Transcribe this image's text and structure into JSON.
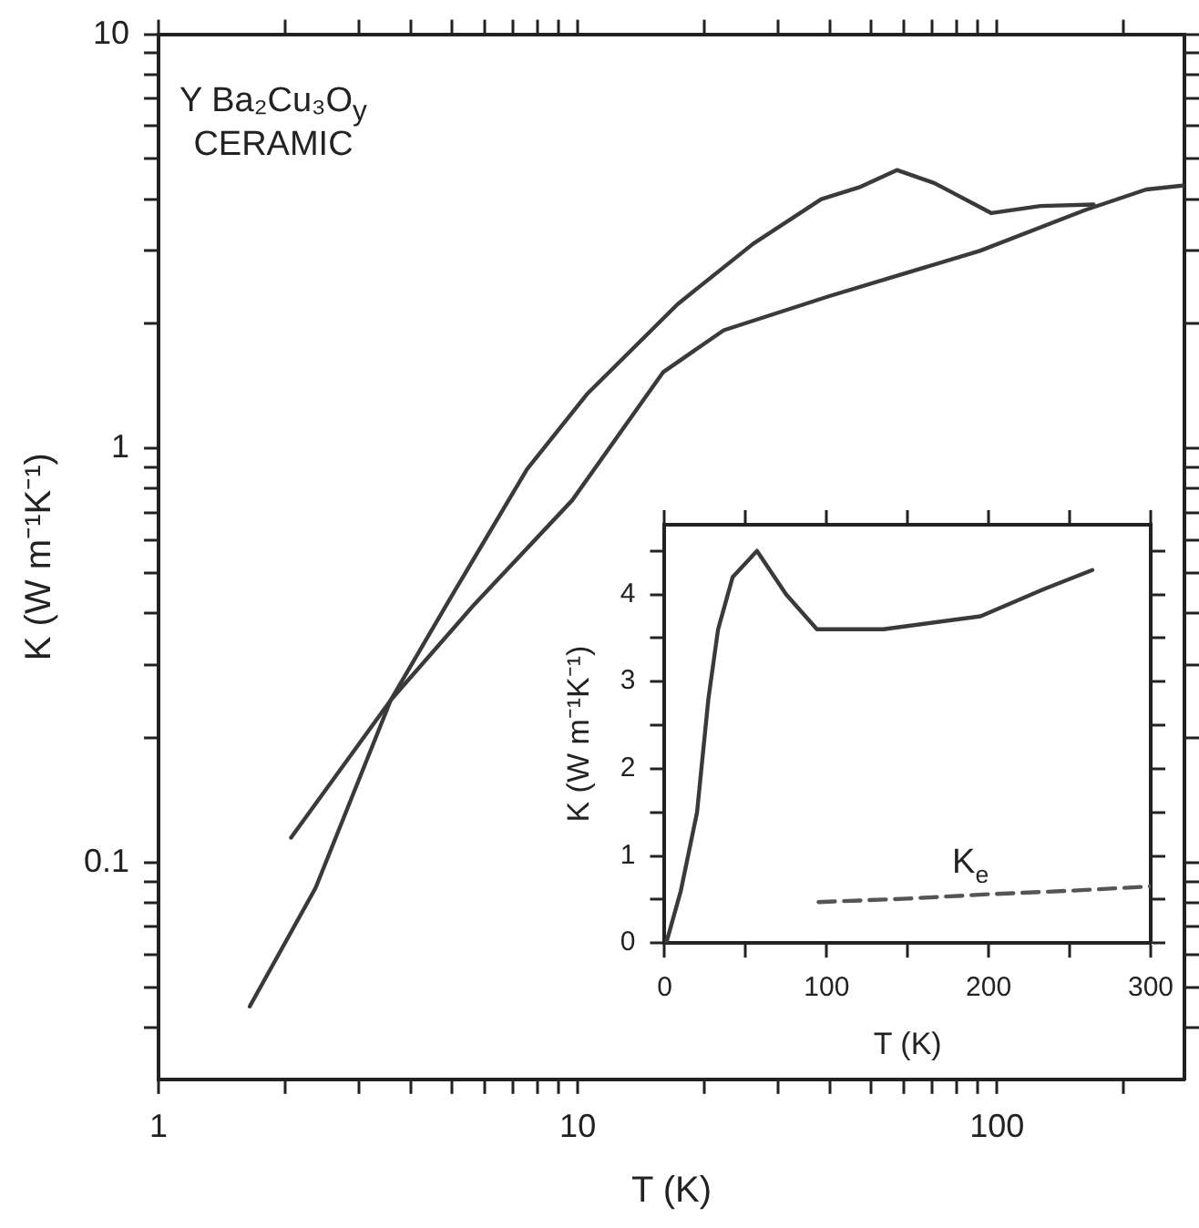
{
  "chart_data": [
    {
      "type": "line",
      "xlabel": "T (K)",
      "ylabel": "K (W m⁻¹K⁻¹)",
      "log": "xy",
      "grid": false,
      "legend": false,
      "xlim": [
        1,
        280
      ],
      "ylim": [
        0.03,
        10
      ],
      "xticks": [
        1,
        {
          "value": 2,
          "label": null
        },
        {
          "value": 3,
          "label": null
        },
        {
          "value": 4,
          "label": null
        },
        {
          "value": 5,
          "label": null
        },
        {
          "value": 6,
          "label": null
        },
        {
          "value": 7,
          "label": null
        },
        {
          "value": 8,
          "label": null
        },
        {
          "value": 9,
          "label": null
        },
        10,
        {
          "value": 20,
          "label": null
        },
        {
          "value": 30,
          "label": null
        },
        {
          "value": 40,
          "label": null
        },
        {
          "value": 50,
          "label": null
        },
        {
          "value": 60,
          "label": null
        },
        {
          "value": 70,
          "label": null
        },
        {
          "value": 80,
          "label": null
        },
        {
          "value": 90,
          "label": null
        },
        100,
        {
          "value": 200,
          "label": null
        }
      ],
      "yticks": [
        {
          "value": 0.04,
          "label": null
        },
        {
          "value": 0.05,
          "label": null
        },
        {
          "value": 0.06,
          "label": null
        },
        {
          "value": 0.07,
          "label": null
        },
        {
          "value": 0.08,
          "label": null
        },
        {
          "value": 0.09,
          "label": null
        },
        0.1,
        {
          "value": 0.2,
          "label": null
        },
        {
          "value": 0.3,
          "label": null
        },
        {
          "value": 0.4,
          "label": null
        },
        {
          "value": 0.5,
          "label": null
        },
        {
          "value": 0.6,
          "label": null
        },
        {
          "value": 0.7,
          "label": null
        },
        {
          "value": 0.8,
          "label": null
        },
        {
          "value": 0.9,
          "label": null
        },
        1,
        {
          "value": 2,
          "label": null
        },
        {
          "value": 3,
          "label": null
        },
        {
          "value": 4,
          "label": null
        },
        {
          "value": 5,
          "label": null
        },
        {
          "value": 6,
          "label": null
        },
        {
          "value": 7,
          "label": null
        },
        {
          "value": 8,
          "label": null
        },
        {
          "value": 9,
          "label": null
        },
        10
      ],
      "annotations": [
        "Y Ba₂Cu₃O$_{y}$",
        "CERAMIC"
      ],
      "series": [
        {
          "color": "#3a3a3a",
          "x": [
            1.65,
            2.37,
            3.58,
            5.0,
            7.56,
            10.5,
            17.3,
            26.2,
            38.1,
            46.9,
            57.7,
            71,
            97,
            127,
            170
          ],
          "values": [
            0.045,
            0.087,
            0.247,
            0.44,
            0.89,
            1.35,
            2.23,
            3.12,
            4.0,
            4.27,
            4.7,
            4.37,
            3.7,
            3.85,
            3.88
          ]
        },
        {
          "color": "#3a3a3a",
          "x": [
            2.07,
            3.58,
            5.66,
            9.7,
            16,
            22.3,
            39.7,
            91,
            163,
            227,
            277
          ],
          "values": [
            0.115,
            0.247,
            0.42,
            0.75,
            1.53,
            1.93,
            2.33,
            3.0,
            3.77,
            4.22,
            4.31
          ]
        }
      ]
    },
    {
      "type": "line",
      "xlabel": "T (K)",
      "ylabel": "K (W m⁻¹K⁻¹)",
      "grid": false,
      "legend": false,
      "xlim": [
        0,
        300
      ],
      "ylim": [
        0,
        4.8
      ],
      "xticks": [
        0,
        {
          "value": 50,
          "label": null
        },
        100,
        {
          "value": 150,
          "label": null
        },
        200,
        {
          "value": 250,
          "label": null
        },
        300
      ],
      "yticks": [
        0,
        {
          "value": 0.5,
          "label": null
        },
        1,
        {
          "value": 1.5,
          "label": null
        },
        2,
        {
          "value": 2.5,
          "label": null
        },
        3,
        {
          "value": 3.5,
          "label": null
        },
        4,
        {
          "value": 4.5,
          "label": null
        }
      ],
      "series": [
        {
          "color": "#3a3a3a",
          "x": [
            1,
            10,
            20,
            27,
            33,
            42,
            57,
            75,
            94,
            135,
            195,
            234,
            264
          ],
          "values": [
            0,
            0.6,
            1.5,
            2.8,
            3.6,
            4.2,
            4.5,
            4.0,
            3.6,
            3.6,
            3.75,
            4.06,
            4.28
          ]
        },
        {
          "name": "K$_{e}$",
          "color": "#555555",
          "line_style": "dashed",
          "x": [
            95,
            150,
            200,
            250,
            300
          ],
          "values": [
            0.47,
            0.51,
            0.56,
            0.6,
            0.65
          ]
        }
      ]
    }
  ]
}
